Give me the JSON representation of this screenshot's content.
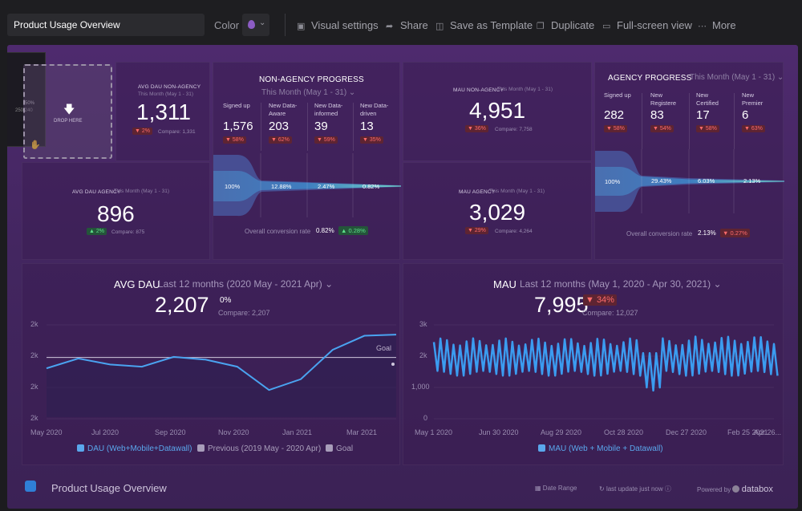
{
  "topbar": {
    "title": "Product Usage Overview",
    "color_label": "Color",
    "items": [
      {
        "label": "Visual settings",
        "icon": "image-icon"
      },
      {
        "label": "Share",
        "icon": "share-icon"
      },
      {
        "label": "Save as Template",
        "icon": "template-icon"
      },
      {
        "label": "Duplicate",
        "icon": "duplicate-icon"
      },
      {
        "label": "Full-screen view",
        "icon": "monitor-icon"
      },
      {
        "label": "More",
        "icon": "more-icon"
      }
    ],
    "accent_color": "#8c5cc4"
  },
  "drag": {
    "percent": "50%",
    "value": "250,240",
    "drop_label": "DROP HERE"
  },
  "avg_dau_non_agency": {
    "label": "AVG DAU NON-AGENCY",
    "range": "This Month (May 1 - 31)",
    "value": "1,311",
    "change": "▼ 2%",
    "compare": "Compare: 1,331"
  },
  "avg_dau_agency": {
    "label": "AVG DAU AGENCY",
    "range": "This Month (May 1 - 31)",
    "value": "896",
    "change": "▲ 2%",
    "compare": "Compare: 875"
  },
  "non_agency_progress": {
    "title": "NON-AGENCY PROGRESS",
    "range": "This Month (May 1 - 31)",
    "columns": [
      {
        "header": "Signed up",
        "value": "1,576",
        "change": "▼ 58%"
      },
      {
        "header": "New Data-Aware",
        "value": "203",
        "change": "▼ 62%"
      },
      {
        "header": "New Data-informed",
        "value": "39",
        "change": "▼ 59%"
      },
      {
        "header": "New Data-driven",
        "value": "13",
        "change": "▼ 35%"
      }
    ],
    "funnel_labels": [
      "100%",
      "12.88%",
      "2.47%",
      "0.82%"
    ],
    "conversion_label": "Overall conversion rate",
    "conversion_value": "0.82%",
    "conversion_change": "▲ 0.28%"
  },
  "mau_non_agency": {
    "label": "MAU NON-AGENCY",
    "range": "This Month (May 1 - 31)",
    "value": "4,951",
    "change": "▼ 36%",
    "compare": "Compare: 7,758"
  },
  "mau_agency": {
    "label": "MAU AGENCY",
    "range": "This Month (May 1 - 31)",
    "value": "3,029",
    "change": "▼ 29%",
    "compare": "Compare: 4,264"
  },
  "agency_progress": {
    "title": "AGENCY PROGRESS",
    "range": "This Month (May 1 - 31)",
    "columns": [
      {
        "header": "Signed up",
        "value": "282",
        "change": "▼ 58%"
      },
      {
        "header": "New Registere",
        "value": "83",
        "change": "▼ 54%"
      },
      {
        "header": "New Certified",
        "value": "17",
        "change": "▼ 58%"
      },
      {
        "header": "New Premier",
        "value": "6",
        "change": "▼ 63%"
      }
    ],
    "funnel_labels": [
      "100%",
      "29.43%",
      "6.03%",
      "2.13%"
    ],
    "conversion_label": "Overall conversion rate",
    "conversion_value": "2.13%",
    "conversion_change": "▼ 0.27%"
  },
  "avg_dau_chart": {
    "title": "AVG DAU",
    "range": "Last 12 months (2020 May - 2021 Apr)",
    "value": "2,207",
    "change": "0%",
    "compare": "Compare: 2,207",
    "goal_label": "Goal",
    "legend": [
      "DAU (Web+Mobile+Datawall)",
      "Previous (2019 May - 2020 Apr)",
      "Goal"
    ]
  },
  "mau_chart": {
    "title": "MAU",
    "range": "Last 12 months (May 1, 2020 - Apr 30, 2021)",
    "value": "7,995",
    "change": "▼ 34%",
    "compare": "Compare: 12,027",
    "legend": [
      "MAU (Web + Mobile + Datawall)"
    ]
  },
  "footer": {
    "title": "Product Usage Overview",
    "date_range": "Date Range",
    "last_update": "last update just now",
    "powered_by": "Powered by",
    "brand": "databox"
  },
  "chart_data": [
    {
      "type": "line",
      "title": "AVG DAU",
      "categories": [
        "May 2020",
        "Jun 2020",
        "Jul 2020",
        "Aug 2020",
        "Sep 2020",
        "Oct 2020",
        "Nov 2020",
        "Dec 2020",
        "Jan 2021",
        "Feb 2021",
        "Mar 2021",
        "Apr 2021"
      ],
      "x_tick_labels": [
        "May 2020",
        "Jul 2020",
        "Sep 2020",
        "Nov 2020",
        "Jan 2021",
        "Mar 2021"
      ],
      "y_tick_labels": [
        "2k",
        "2k",
        "2k",
        "2k"
      ],
      "series": [
        {
          "name": "DAU (Web+Mobile+Datawall)",
          "values": [
            2150,
            2240,
            2185,
            2165,
            2255,
            2230,
            2165,
            1950,
            2050,
            2320,
            2450,
            2460
          ]
        },
        {
          "name": "Goal",
          "values": [
            2250,
            2250,
            2250,
            2250,
            2250,
            2250,
            2250,
            2250,
            2250,
            2250,
            2250,
            2250
          ]
        }
      ],
      "ylim": [
        1700,
        2550
      ]
    },
    {
      "type": "line",
      "title": "MAU",
      "x_tick_labels": [
        "May 1 2020",
        "Jun 30 2020",
        "Aug 29 2020",
        "Oct 28 2020",
        "Dec 27 2020",
        "Feb 25 2021",
        "Apr 26..."
      ],
      "y_tick_labels": [
        "3k",
        "2k",
        "1,000",
        "0"
      ],
      "series": [
        {
          "name": "MAU (Web + Mobile + Datawall)",
          "pattern": "weekly oscillation between approx 1400 and 2500 with a dip to approx 900 in late December 2020"
        }
      ],
      "ylim": [
        0,
        3000
      ]
    }
  ]
}
